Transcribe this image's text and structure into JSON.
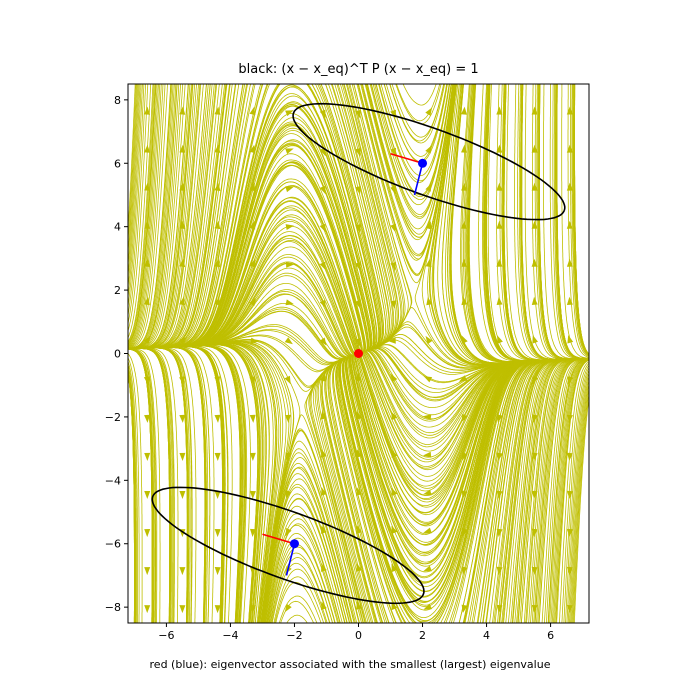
{
  "chart_data": {
    "type": "streamplot",
    "title_prefix": "black: ",
    "title_math": "(x − x_eq)^T P (x − x_eq) = 1",
    "caption": "red (blue): eigenvector associated with the smallest (largest) eigenvalue",
    "xlim": [
      -7.2,
      7.2
    ],
    "ylim": [
      -8.5,
      8.5
    ],
    "xticks": [
      -6,
      -4,
      -2,
      0,
      2,
      4,
      6
    ],
    "yticks": [
      -8,
      -6,
      -4,
      -2,
      0,
      2,
      4,
      6,
      8
    ],
    "xtick_labels": [
      "−6",
      "−4",
      "−2",
      "0",
      "2",
      "4",
      "6"
    ],
    "ytick_labels": [
      "−8",
      "−6",
      "−4",
      "−2",
      "0",
      "2",
      "4",
      "6",
      "8"
    ],
    "stream_color": "#bfbf00",
    "ellipse_color": "#000000",
    "equilibria": [
      {
        "x": 0,
        "y": 0,
        "color": "#ff0000"
      },
      {
        "x": 2,
        "y": 6,
        "color": "#0000ff"
      },
      {
        "x": -2,
        "y": -6,
        "color": "#0000ff"
      }
    ],
    "ellipses": [
      {
        "cx": 2.2,
        "cy": 6.05,
        "semi_major": 4.5,
        "semi_minor": 1.05,
        "angle_deg": -20
      },
      {
        "cx": -2.2,
        "cy": -6.05,
        "semi_major": 4.5,
        "semi_minor": 1.05,
        "angle_deg": -20
      }
    ],
    "eigenvectors": [
      {
        "from": [
          2,
          6
        ],
        "to": [
          1.0,
          6.3
        ],
        "color": "#ff0000"
      },
      {
        "from": [
          2,
          6
        ],
        "to": [
          1.75,
          5.0
        ],
        "color": "#0000ff"
      },
      {
        "from": [
          -2,
          -6
        ],
        "to": [
          -3.0,
          -5.7
        ],
        "color": "#ff0000"
      },
      {
        "from": [
          -2,
          -6
        ],
        "to": [
          -2.25,
          -7.0
        ],
        "color": "#0000ff"
      }
    ]
  }
}
